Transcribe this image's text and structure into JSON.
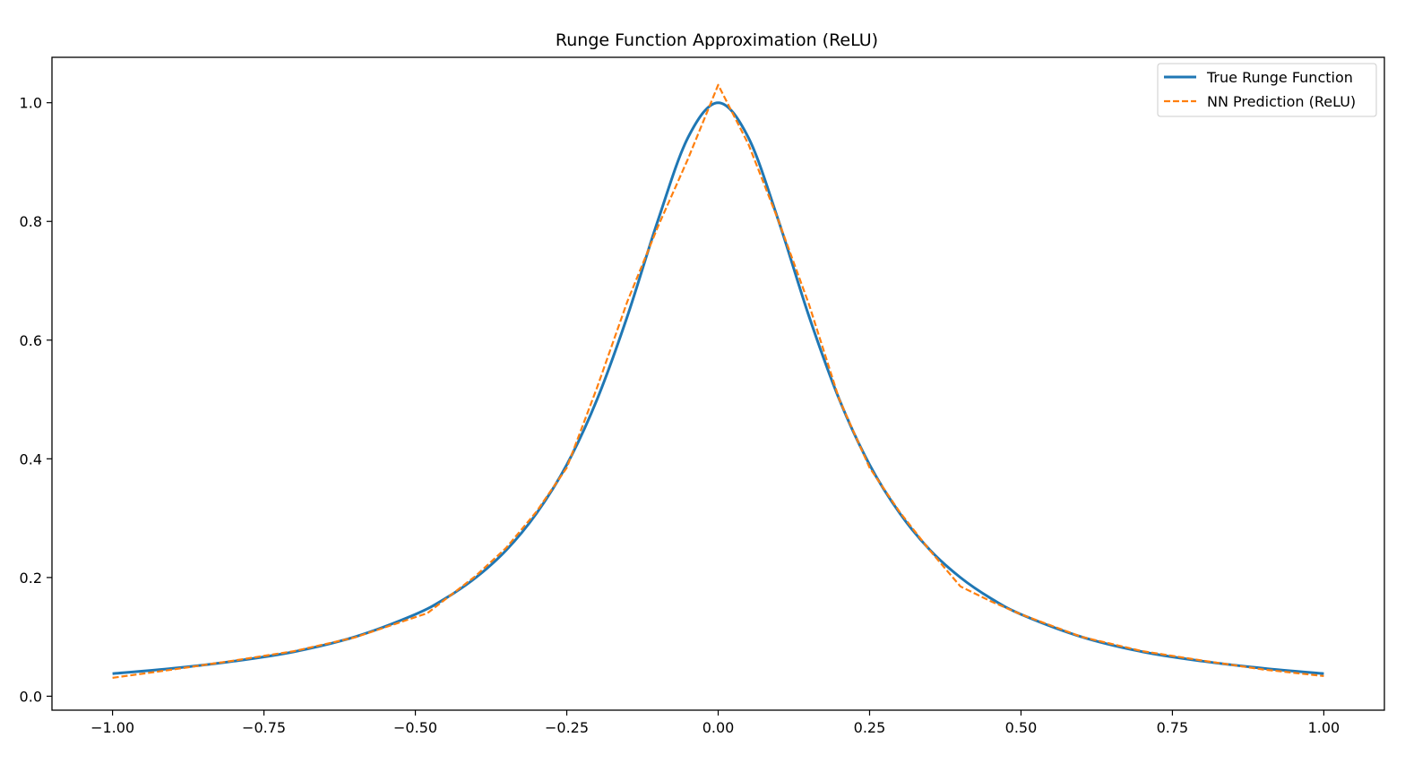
{
  "chart_data": {
    "type": "line",
    "title": "Runge Function Approximation (ReLU)",
    "xlabel": "",
    "ylabel": "",
    "xlim": [
      -1.1,
      1.1
    ],
    "ylim": [
      -0.0235,
      1.0765
    ],
    "x_ticks": [
      -1.0,
      -0.75,
      -0.5,
      -0.25,
      0.0,
      0.25,
      0.5,
      0.75,
      1.0
    ],
    "x_tick_labels": [
      "−1.00",
      "−0.75",
      "−0.50",
      "−0.25",
      "0.00",
      "0.25",
      "0.50",
      "0.75",
      "1.00"
    ],
    "y_ticks": [
      0.0,
      0.2,
      0.4,
      0.6,
      0.8,
      1.0
    ],
    "y_tick_labels": [
      "0.0",
      "0.2",
      "0.4",
      "0.6",
      "0.8",
      "1.0"
    ],
    "grid": false,
    "legend_position": "top-right",
    "series": [
      {
        "name": "True Runge Function",
        "style": "solid",
        "color": "#1f77b4",
        "x": [
          -1.0,
          -0.9,
          -0.8,
          -0.7,
          -0.6,
          -0.5,
          -0.45,
          -0.4,
          -0.35,
          -0.3,
          -0.25,
          -0.2,
          -0.15,
          -0.1,
          -0.05,
          0.0,
          0.05,
          0.1,
          0.15,
          0.2,
          0.25,
          0.3,
          0.35,
          0.4,
          0.45,
          0.5,
          0.6,
          0.7,
          0.8,
          0.9,
          1.0
        ],
        "y": [
          0.038,
          0.047,
          0.059,
          0.075,
          0.1,
          0.138,
          0.165,
          0.2,
          0.246,
          0.308,
          0.39,
          0.5,
          0.64,
          0.8,
          0.941,
          1.0,
          0.941,
          0.8,
          0.64,
          0.5,
          0.39,
          0.308,
          0.246,
          0.2,
          0.165,
          0.138,
          0.1,
          0.075,
          0.059,
          0.047,
          0.038
        ]
      },
      {
        "name": "NN Prediction (ReLU)",
        "style": "dashed",
        "color": "#ff7f0e",
        "x": [
          -1.0,
          -0.9,
          -0.8,
          -0.7,
          -0.6,
          -0.48,
          -0.4,
          -0.35,
          -0.3,
          -0.25,
          -0.2,
          -0.15,
          -0.1,
          -0.05,
          0.0,
          0.05,
          0.1,
          0.15,
          0.2,
          0.25,
          0.3,
          0.35,
          0.4,
          0.45,
          0.5,
          0.6,
          0.7,
          0.8,
          0.9,
          1.0
        ],
        "y": [
          0.031,
          0.045,
          0.06,
          0.076,
          0.099,
          0.14,
          0.203,
          0.25,
          0.311,
          0.385,
          0.52,
          0.665,
          0.79,
          0.905,
          1.03,
          0.93,
          0.8,
          0.66,
          0.5,
          0.385,
          0.31,
          0.245,
          0.185,
          0.16,
          0.138,
          0.1,
          0.076,
          0.06,
          0.045,
          0.034
        ]
      }
    ]
  }
}
